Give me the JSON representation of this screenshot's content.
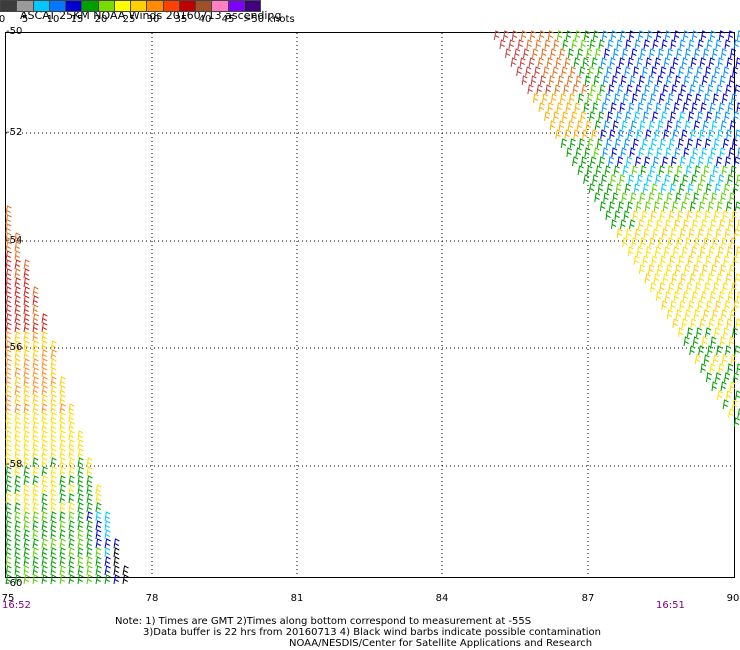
{
  "title": "ASCAT 25KM NOAA Winds 20160713 ascending",
  "legend": {
    "labels": [
      "0",
      "5",
      "10",
      "15",
      "20",
      "25",
      "30",
      "35",
      "40",
      "45",
      ">50 knots"
    ],
    "colors": [
      "#3c3c3c",
      "#9a9a9a",
      "#00c8ff",
      "#0078ff",
      "#0000d0",
      "#00a000",
      "#78dc00",
      "#ffff00",
      "#ffd000",
      "#ff8c00",
      "#ff4000",
      "#c00000",
      "#a05028",
      "#ff80c0",
      "#8000ff",
      "#400080"
    ]
  },
  "axes": {
    "lat_labels": [
      "-50",
      "-52",
      "-54",
      "-56",
      "-58",
      "-60"
    ],
    "lon_labels": [
      "75",
      "78",
      "81",
      "84",
      "87",
      "90"
    ]
  },
  "times": {
    "left": "16:52",
    "right": "16:51"
  },
  "notes": {
    "line1": "Note: 1) Times are GMT 2)Times along bottom correspond to measurement at -55S",
    "line2": "3)Data buffer is 22 hrs from 20160713 4) Black wind barbs indicate possible contamination",
    "line3": "NOAA/NESDIS/Center for Satellite Applications and Research"
  }
}
